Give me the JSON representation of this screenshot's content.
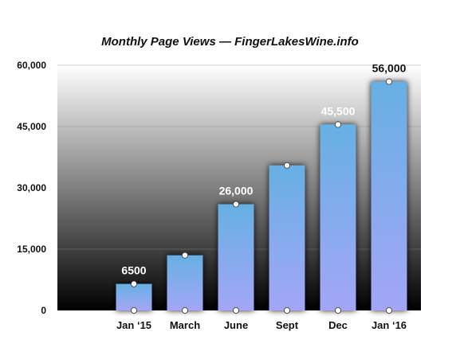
{
  "chart_data": {
    "type": "bar",
    "title": "Monthly Page Views — FingerLakesWine.info",
    "xlabel": "",
    "ylabel": "",
    "categories": [
      "Jan ‘15",
      "March",
      "June",
      "Sept",
      "Dec",
      "Jan ‘16"
    ],
    "values": [
      6500,
      13500,
      26000,
      35500,
      45500,
      56000
    ],
    "data_labels": [
      "6500",
      "",
      "26,000",
      "",
      "45,500",
      "56,000"
    ],
    "ylim": [
      0,
      60000
    ],
    "yticks": [
      0,
      15000,
      30000,
      45000,
      60000
    ],
    "ytick_labels": [
      "0",
      "15,000",
      "30,000",
      "45,000",
      "60,000"
    ],
    "grid": true,
    "legend": "none",
    "colors": {
      "bar_top": "#66b0e3",
      "bar_bottom": "#a4a6f7",
      "plot_bg_top": "#ffffff",
      "plot_bg_bottom": "#000000",
      "marker": "#ffffff"
    }
  }
}
